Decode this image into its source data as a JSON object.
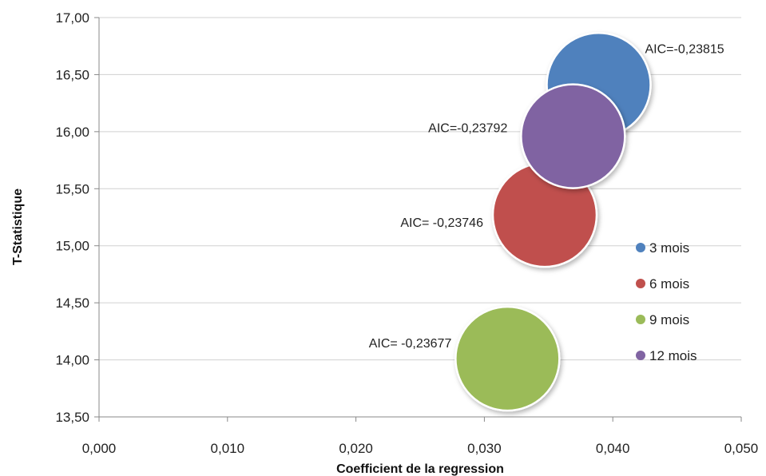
{
  "chart_data": {
    "type": "bubble",
    "xlabel": "Coefficient de la regression",
    "ylabel": "T-Statistique",
    "xlim": [
      0,
      0.05
    ],
    "ylim": [
      13.5,
      17.0
    ],
    "x_ticks": [
      "0,000",
      "0,010",
      "0,020",
      "0,030",
      "0,040",
      "0,050"
    ],
    "y_ticks": [
      "13,50",
      "14,00",
      "14,50",
      "15,00",
      "15,50",
      "16,00",
      "16,50",
      "17,00"
    ],
    "grid": "horizontal",
    "legend_position": "right",
    "series": [
      {
        "name": "3 mois",
        "x": 0.0389,
        "y": 16.41,
        "label": "AIC=-0,23815",
        "color": "#4F81BD"
      },
      {
        "name": "6 mois",
        "x": 0.0347,
        "y": 15.27,
        "label": "AIC= -0,23746",
        "color": "#C0504D"
      },
      {
        "name": "9 mois",
        "x": 0.0318,
        "y": 14.01,
        "label": "AIC= -0,23677",
        "color": "#9BBB59"
      },
      {
        "name": "12 mois",
        "x": 0.0369,
        "y": 15.96,
        "label": "AIC=-0,23792",
        "color": "#8064A2"
      }
    ]
  }
}
